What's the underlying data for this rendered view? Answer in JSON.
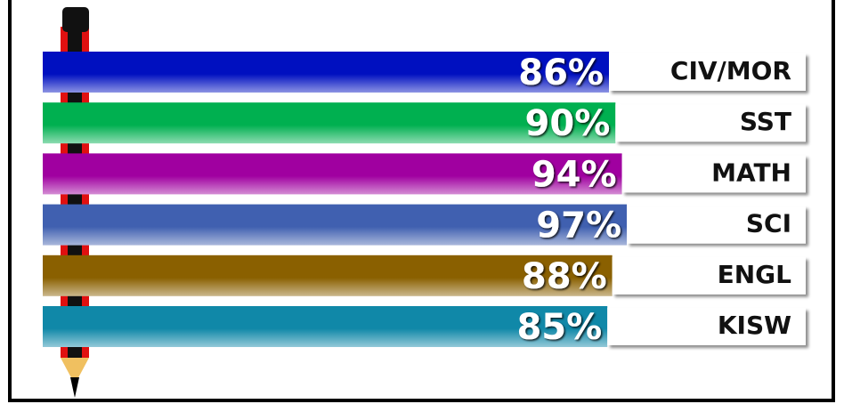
{
  "chart_data": {
    "type": "bar",
    "orientation": "horizontal",
    "categories": [
      "CIV/MOR",
      "SST",
      "MATH",
      "SCI",
      "ENGL",
      "KISW"
    ],
    "values": [
      86,
      90,
      94,
      97,
      88,
      85
    ],
    "value_labels": [
      "86%",
      "90%",
      "94%",
      "97%",
      "88%",
      "85%"
    ],
    "colors": [
      "#0010c0",
      "#00b050",
      "#a000a0",
      "#4060b0",
      "#8a6000",
      "#1088a8"
    ]
  }
}
